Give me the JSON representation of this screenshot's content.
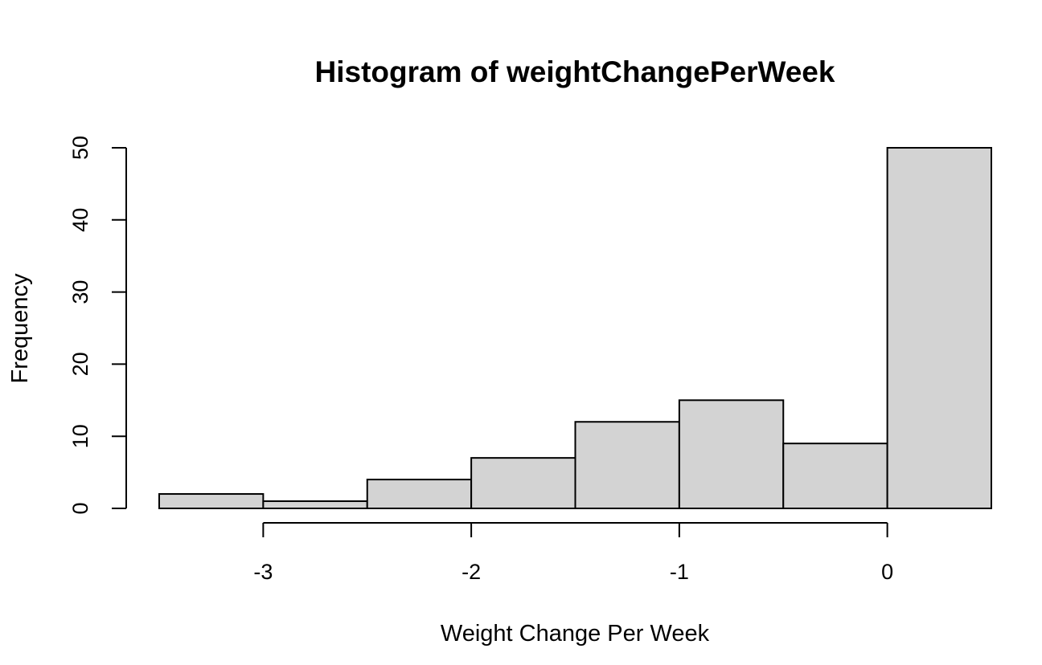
{
  "chart_data": {
    "type": "bar",
    "title": "Histogram of weightChangePerWeek",
    "xlabel": "Weight Change Per Week",
    "ylabel": "Frequency",
    "bins": [
      {
        "start": -3.5,
        "end": -3.0,
        "count": 2
      },
      {
        "start": -3.0,
        "end": -2.5,
        "count": 1
      },
      {
        "start": -2.5,
        "end": -2.0,
        "count": 4
      },
      {
        "start": -2.0,
        "end": -1.5,
        "count": 7
      },
      {
        "start": -1.5,
        "end": -1.0,
        "count": 12
      },
      {
        "start": -1.0,
        "end": -0.5,
        "count": 15
      },
      {
        "start": -0.5,
        "end": 0.0,
        "count": 9
      },
      {
        "start": 0.0,
        "end": 0.5,
        "count": 50
      }
    ],
    "xticks": [
      -3,
      -2,
      -1,
      0
    ],
    "xtick_labels": [
      "-3",
      "-2",
      "-1",
      "0"
    ],
    "yticks": [
      0,
      10,
      20,
      30,
      40,
      50
    ],
    "ytick_labels": [
      "0",
      "10",
      "20",
      "30",
      "40",
      "50"
    ],
    "xlim": [
      -3.5,
      0.5
    ],
    "ylim": [
      0,
      50
    ],
    "grid": false,
    "colors": {
      "bar_fill": "#d3d3d3",
      "bar_stroke": "#000000"
    }
  }
}
